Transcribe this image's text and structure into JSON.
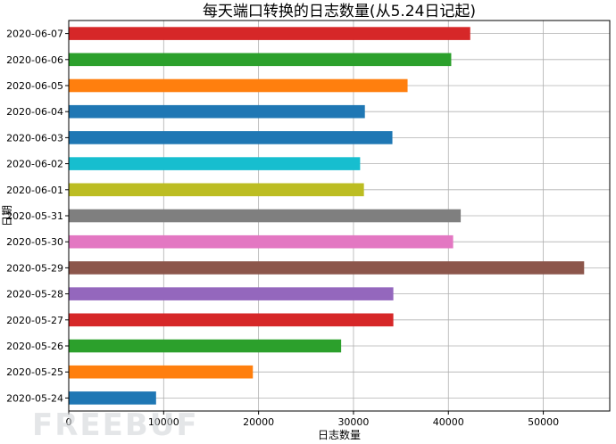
{
  "chart_data": {
    "type": "bar",
    "orientation": "horizontal",
    "title": "每天端口转换的日志数量(从5.24日记起)",
    "xlabel": "日志数量",
    "ylabel": "日期",
    "categories": [
      "2020-05-24",
      "2020-05-25",
      "2020-05-26",
      "2020-05-27",
      "2020-05-28",
      "2020-05-29",
      "2020-05-30",
      "2020-05-31",
      "2020-06-01",
      "2020-06-02",
      "2020-06-03",
      "2020-06-04",
      "2020-06-05",
      "2020-06-06",
      "2020-06-07"
    ],
    "values": [
      9200,
      19400,
      28700,
      34200,
      34200,
      54300,
      40500,
      41300,
      31100,
      30700,
      34100,
      31200,
      35700,
      40300,
      42300
    ],
    "colors": [
      "#1f77b4",
      "#ff7f0e",
      "#2ca02c",
      "#d62728",
      "#9467bd",
      "#8c564b",
      "#e377c2",
      "#7f7f7f",
      "#bcbd22",
      "#17becf",
      "#1f77b4",
      "#1f77b4",
      "#ff7f0e",
      "#2ca02c",
      "#d62728"
    ],
    "xlim": [
      0,
      57000
    ],
    "xticks": [
      0,
      10000,
      20000,
      30000,
      40000,
      50000
    ],
    "grid": true,
    "legend": "none"
  },
  "watermark": "FREEBUF"
}
